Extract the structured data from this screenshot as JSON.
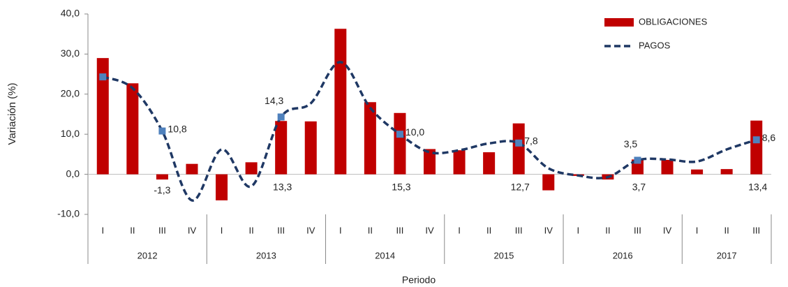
{
  "chart_data": {
    "type": "bar_line",
    "y_label": "Variación (%)",
    "x_label": "Periodo",
    "groups": [
      {
        "label": "2012",
        "quarters": [
          "I",
          "II",
          "III",
          "IV"
        ]
      },
      {
        "label": "2013",
        "quarters": [
          "I",
          "II",
          "III",
          "IV"
        ]
      },
      {
        "label": "2014",
        "quarters": [
          "I",
          "II",
          "III",
          "IV"
        ]
      },
      {
        "label": "2015",
        "quarters": [
          "I",
          "II",
          "III",
          "IV"
        ]
      },
      {
        "label": "2016",
        "quarters": [
          "I",
          "II",
          "III",
          "IV"
        ]
      },
      {
        "label": "2017",
        "quarters": [
          "I",
          "II",
          "III"
        ]
      }
    ],
    "ylim": [
      -10,
      40
    ],
    "yticks": [
      {
        "value": -10,
        "label": "-10,0"
      },
      {
        "value": 0,
        "label": "0,0"
      },
      {
        "value": 10,
        "label": "10,0"
      },
      {
        "value": 20,
        "label": "20,0"
      },
      {
        "value": 30,
        "label": "30,0"
      },
      {
        "value": 40,
        "label": "40,0"
      }
    ],
    "legend": "top-right",
    "series": [
      {
        "name": "OBLIGACIONES",
        "type": "bar",
        "color": "#c00000",
        "values": [
          29.0,
          22.7,
          -1.3,
          2.6,
          -6.5,
          3.0,
          13.3,
          13.2,
          36.3,
          18.0,
          15.3,
          6.3,
          6.0,
          5.5,
          12.7,
          -4.0,
          -0.4,
          -1.3,
          3.7,
          3.6,
          1.2,
          1.3,
          13.4
        ],
        "value_labels": [
          null,
          null,
          "-1,3",
          null,
          null,
          null,
          "13,3",
          null,
          null,
          null,
          "15,3",
          null,
          null,
          null,
          "12,7",
          null,
          null,
          null,
          "3,7",
          null,
          null,
          null,
          "13,4"
        ]
      },
      {
        "name": "PAGOS",
        "type": "line",
        "color": "#1f3864",
        "marker_color": "#4f81bd",
        "marker_indices": [
          0,
          2,
          6,
          10,
          14,
          18,
          22
        ],
        "values": [
          24.3,
          21.5,
          10.8,
          -6.5,
          6.2,
          -3.0,
          14.3,
          17.7,
          28.0,
          16.6,
          10.0,
          5.5,
          6.0,
          7.7,
          7.8,
          1.5,
          -0.3,
          -0.7,
          3.5,
          3.7,
          3.2,
          6.2,
          8.6
        ],
        "value_labels": [
          null,
          null,
          "10,8",
          null,
          null,
          null,
          "14,3",
          null,
          null,
          null,
          "10,0",
          null,
          null,
          null,
          "7,8",
          null,
          null,
          null,
          "3,5",
          null,
          null,
          null,
          "8,6"
        ]
      }
    ]
  }
}
